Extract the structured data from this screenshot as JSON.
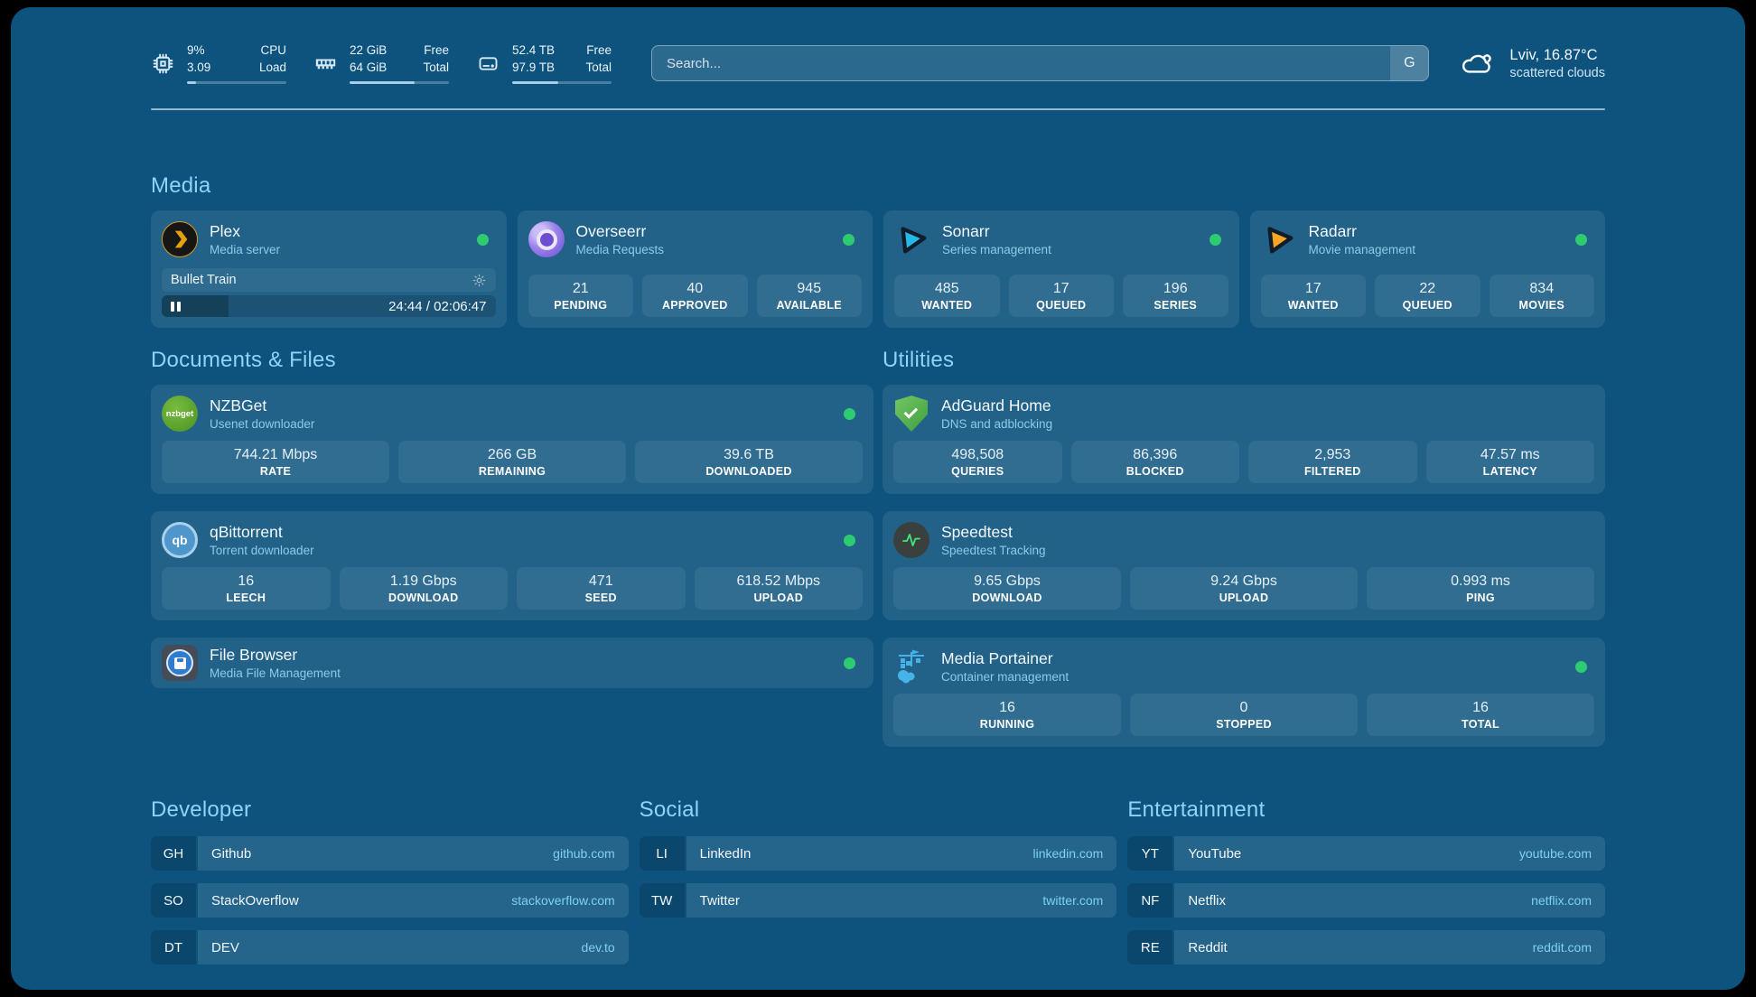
{
  "header": {
    "resources": [
      {
        "name": "cpu",
        "values": [
          "9%",
          "3.09"
        ],
        "labels": [
          "CPU",
          "Load"
        ],
        "progress": 9
      },
      {
        "name": "memory",
        "values": [
          "22 GiB",
          "64 GiB"
        ],
        "labels": [
          "Free",
          "Total"
        ],
        "progress": 65
      },
      {
        "name": "disk",
        "values": [
          "52.4 TB",
          "97.9 TB"
        ],
        "labels": [
          "Free",
          "Total"
        ],
        "progress": 46
      }
    ],
    "search": {
      "placeholder": "Search...",
      "provider_button": "G"
    },
    "weather": {
      "location_temp": "Lviv, 16.87°C",
      "condition": "scattered clouds"
    }
  },
  "icons": {
    "cpu": "chip-outline",
    "memory": "ram-stick",
    "disk": "drive",
    "weather": "cloud",
    "gear": "cog",
    "pause": "double-bar",
    "status": "green-dot"
  },
  "colors": {
    "panel": "#0d537e",
    "status_online": "#2ecc71",
    "accent": "#8ed4f6",
    "url": "#7fd0f2"
  },
  "sections": {
    "media": {
      "title": "Media",
      "cards": [
        {
          "title": "Plex",
          "subtitle": "Media server",
          "online": true,
          "now_playing": {
            "title": "Bullet Train",
            "time": "24:44 / 02:06:47",
            "progress": 20
          }
        },
        {
          "title": "Overseerr",
          "subtitle": "Media Requests",
          "online": true,
          "stats": [
            {
              "value": "21",
              "label": "PENDING"
            },
            {
              "value": "40",
              "label": "APPROVED"
            },
            {
              "value": "945",
              "label": "AVAILABLE"
            }
          ]
        },
        {
          "title": "Sonarr",
          "subtitle": "Series management",
          "online": true,
          "stats": [
            {
              "value": "485",
              "label": "WANTED"
            },
            {
              "value": "17",
              "label": "QUEUED"
            },
            {
              "value": "196",
              "label": "SERIES"
            }
          ]
        },
        {
          "title": "Radarr",
          "subtitle": "Movie management",
          "online": true,
          "stats": [
            {
              "value": "17",
              "label": "WANTED"
            },
            {
              "value": "22",
              "label": "QUEUED"
            },
            {
              "value": "834",
              "label": "MOVIES"
            }
          ]
        }
      ]
    },
    "documents": {
      "title": "Documents & Files",
      "cards": [
        {
          "title": "NZBGet",
          "subtitle": "Usenet downloader",
          "online": true,
          "logo_text": "nzbget",
          "stats": [
            {
              "value": "744.21 Mbps",
              "label": "RATE"
            },
            {
              "value": "266 GB",
              "label": "REMAINING"
            },
            {
              "value": "39.6 TB",
              "label": "DOWNLOADED"
            }
          ]
        },
        {
          "title": "qBittorrent",
          "subtitle": "Torrent downloader",
          "online": true,
          "logo_text": "qb",
          "stats": [
            {
              "value": "16",
              "label": "LEECH"
            },
            {
              "value": "1.19 Gbps",
              "label": "DOWNLOAD"
            },
            {
              "value": "471",
              "label": "SEED"
            },
            {
              "value": "618.52 Mbps",
              "label": "UPLOAD"
            }
          ]
        },
        {
          "title": "File Browser",
          "subtitle": "Media File Management",
          "online": true
        }
      ]
    },
    "utilities": {
      "title": "Utilities",
      "cards": [
        {
          "title": "AdGuard Home",
          "subtitle": "DNS and adblocking",
          "stats": [
            {
              "value": "498,508",
              "label": "QUERIES"
            },
            {
              "value": "86,396",
              "label": "BLOCKED"
            },
            {
              "value": "2,953",
              "label": "FILTERED"
            },
            {
              "value": "47.57 ms",
              "label": "LATENCY"
            }
          ]
        },
        {
          "title": "Speedtest",
          "subtitle": "Speedtest Tracking",
          "stats": [
            {
              "value": "9.65 Gbps",
              "label": "DOWNLOAD"
            },
            {
              "value": "9.24 Gbps",
              "label": "UPLOAD"
            },
            {
              "value": "0.993 ms",
              "label": "PING"
            }
          ]
        },
        {
          "title": "Media Portainer",
          "subtitle": "Container management",
          "online": true,
          "stats": [
            {
              "value": "16",
              "label": "RUNNING"
            },
            {
              "value": "0",
              "label": "STOPPED"
            },
            {
              "value": "16",
              "label": "TOTAL"
            }
          ]
        }
      ]
    },
    "bookmarks": [
      {
        "title": "Developer",
        "links": [
          {
            "abbr": "GH",
            "name": "Github",
            "url": "github.com"
          },
          {
            "abbr": "SO",
            "name": "StackOverflow",
            "url": "stackoverflow.com"
          },
          {
            "abbr": "DT",
            "name": "DEV",
            "url": "dev.to"
          }
        ]
      },
      {
        "title": "Social",
        "links": [
          {
            "abbr": "LI",
            "name": "LinkedIn",
            "url": "linkedin.com"
          },
          {
            "abbr": "TW",
            "name": "Twitter",
            "url": "twitter.com"
          }
        ]
      },
      {
        "title": "Entertainment",
        "links": [
          {
            "abbr": "YT",
            "name": "YouTube",
            "url": "youtube.com"
          },
          {
            "abbr": "NF",
            "name": "Netflix",
            "url": "netflix.com"
          },
          {
            "abbr": "RE",
            "name": "Reddit",
            "url": "reddit.com"
          }
        ]
      }
    ]
  }
}
